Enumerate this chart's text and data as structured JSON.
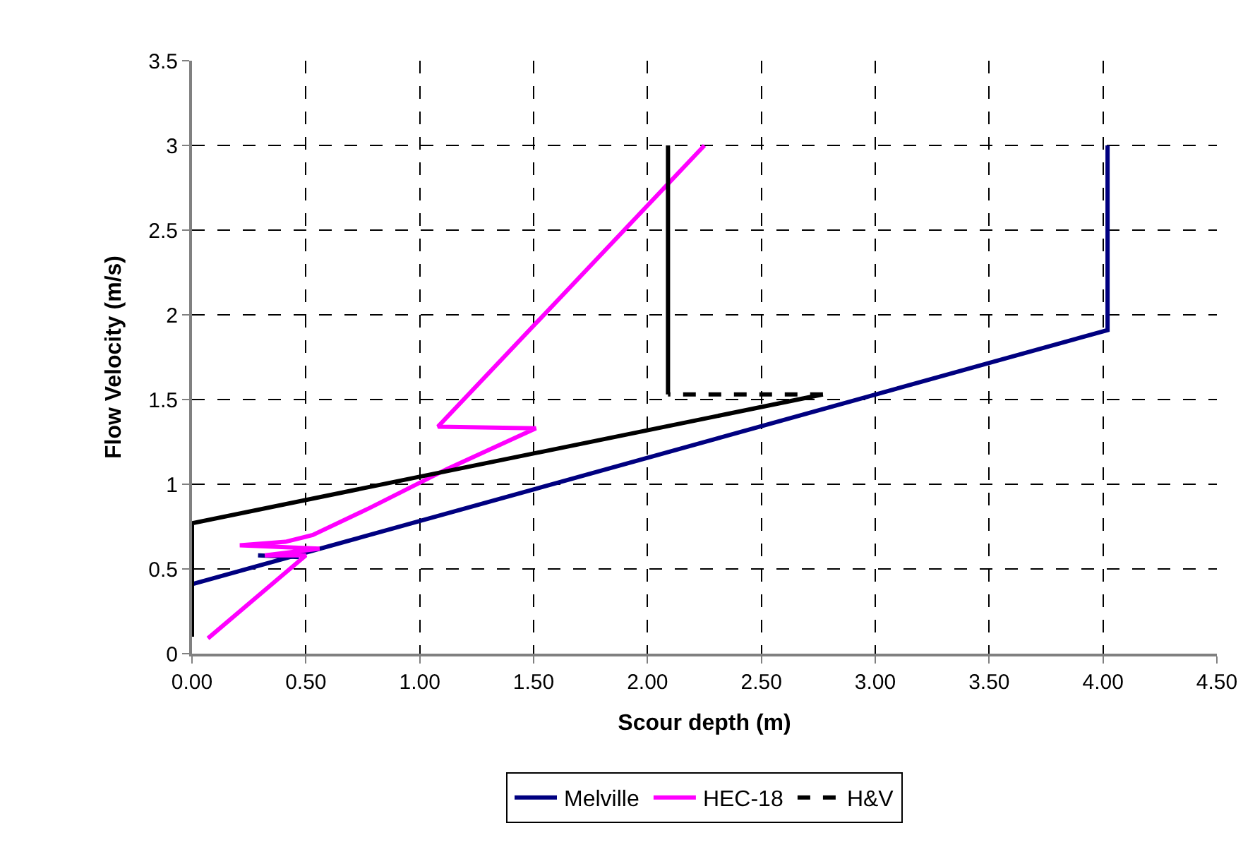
{
  "chart_data": {
    "type": "line",
    "xlabel": "Scour depth (m)",
    "ylabel": "Flow Velocity (m/s)",
    "xlim": [
      0,
      4.5
    ],
    "xticks": [
      {
        "value": 0,
        "label": "0.00"
      },
      {
        "value": 0.5,
        "label": "0.50"
      },
      {
        "value": 1,
        "label": "1.00"
      },
      {
        "value": 1.5,
        "label": "1.50"
      },
      {
        "value": 2,
        "label": "2.00"
      },
      {
        "value": 2.5,
        "label": "2.50"
      },
      {
        "value": 3,
        "label": "3.00"
      },
      {
        "value": 3.5,
        "label": "3.50"
      },
      {
        "value": 4,
        "label": "4.00"
      },
      {
        "value": 4.5,
        "label": "4.50"
      }
    ],
    "ylim": [
      0,
      3.5
    ],
    "yticks": [
      0,
      0.5,
      1,
      1.5,
      2,
      2.5,
      3,
      3.5
    ],
    "grid": true,
    "legend": "bottom",
    "marker": "none",
    "series": [
      {
        "name": "Melville",
        "color": "#000080",
        "line_style": "solid",
        "x": [
          0,
          4.02,
          4.02,
          null,
          0.29,
          0.47
        ],
        "values": [
          0.41,
          1.91,
          3.0,
          null,
          0.58,
          0.57
        ]
      },
      {
        "name": "HEC-18",
        "color": "#ff00ff",
        "line_style": "solid",
        "x": [
          0.07,
          0.5,
          0.32,
          0.56,
          0.21,
          0.41,
          0.53,
          0.78,
          1.12,
          1.51,
          1.08,
          2.25
        ],
        "values": [
          0.09,
          0.58,
          0.58,
          0.62,
          0.64,
          0.66,
          0.7,
          0.86,
          1.09,
          1.33,
          1.34,
          3.0
        ]
      },
      {
        "name": "H&V",
        "color": "#000000",
        "line_style": "dashed",
        "x": [
          2.77,
          2.09
        ],
        "values": [
          1.53,
          1.53
        ]
      },
      {
        "color": "#000000",
        "line_style": "solid",
        "x": [
          0,
          0,
          2.77,
          null,
          2.09,
          2.09
        ],
        "values": [
          0.1,
          0.77,
          1.53,
          null,
          1.53,
          3.0
        ]
      }
    ]
  }
}
